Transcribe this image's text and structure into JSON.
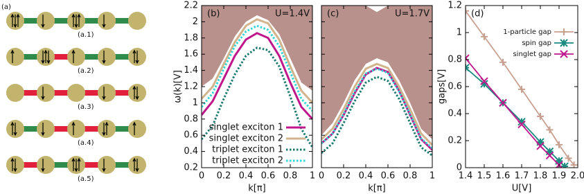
{
  "diagram": {
    "label": "(a)",
    "rows": [
      "(a.1)",
      "(a.2)",
      "(a.3)",
      "(a.4)",
      "(a.5)"
    ]
  },
  "chart_data": [
    {
      "type": "line",
      "panel": "(b)",
      "annotation": "U=1.4V",
      "ylabel": "ω(k)[V]",
      "xlabel": "k[π]",
      "x": [
        0,
        0.1,
        0.2,
        0.3,
        0.4,
        0.5,
        0.6,
        0.7,
        0.8,
        0.9,
        1
      ],
      "band": {
        "color": "#b8918c",
        "upper": [
          2.2,
          2.2,
          2.2,
          2.2,
          2.2,
          2.2,
          2.2,
          2.2,
          2.2,
          2.2,
          2.2
        ],
        "lower": [
          1.2,
          1.3,
          1.55,
          1.82,
          2.0,
          2.08,
          2.02,
          1.85,
          1.55,
          1.25,
          1.15
        ]
      },
      "series": [
        {
          "name": "singlet exciton 1",
          "color": "#c0168c",
          "dash": false,
          "values": [
            0.85,
            1.02,
            1.3,
            1.58,
            1.78,
            1.86,
            1.8,
            1.58,
            1.25,
            0.95,
            0.8
          ]
        },
        {
          "name": "singlet exciton 2",
          "color": "#d2b48c",
          "dash": false,
          "values": [
            1.05,
            1.2,
            1.48,
            1.75,
            1.95,
            2.03,
            1.98,
            1.78,
            1.45,
            1.15,
            1.0
          ]
        },
        {
          "name": "triplet exciton 1",
          "color": "#1a7a6e",
          "dash": true,
          "values": [
            0.55,
            0.72,
            1.05,
            1.35,
            1.58,
            1.68,
            1.65,
            1.45,
            1.08,
            0.68,
            0.45
          ]
        },
        {
          "name": "triplet exciton 2",
          "color": "#2fd4d4",
          "dash": true,
          "values": [
            0.95,
            1.12,
            1.42,
            1.7,
            1.88,
            1.95,
            1.9,
            1.7,
            1.38,
            1.05,
            0.9
          ]
        }
      ],
      "legend": "lower left",
      "show_ytick_labels": true,
      "xlim": [
        0,
        1
      ],
      "xticks": [
        0,
        0.2,
        0.4,
        0.6,
        0.8,
        1
      ],
      "ylim": [
        0.2,
        2.2
      ],
      "yticks": [
        0.2,
        0.4,
        0.6,
        0.8,
        1,
        1.2,
        1.4,
        1.6,
        1.8,
        2,
        2.2
      ]
    },
    {
      "type": "line",
      "panel": "(c)",
      "annotation": "U=1.7V",
      "xlabel": "k[π]",
      "x": [
        0,
        0.1,
        0.2,
        0.3,
        0.4,
        0.5,
        0.6,
        0.7,
        0.8,
        0.9,
        1
      ],
      "band": {
        "color": "#b8918c",
        "upper": [
          2.2,
          2.2,
          2.2,
          2.2,
          2.2,
          2.12,
          2.2,
          2.2,
          2.2,
          2.2,
          2.2
        ],
        "lower": [
          0.6,
          0.75,
          1.0,
          1.28,
          1.48,
          1.55,
          1.5,
          1.28,
          1.0,
          0.68,
          0.55
        ]
      },
      "series": [
        {
          "color": "#c0168c",
          "dash": false,
          "values": [
            0.5,
            0.62,
            0.85,
            1.12,
            1.35,
            1.43,
            1.38,
            1.15,
            0.85,
            0.55,
            0.42
          ]
        },
        {
          "color": "#d2b48c",
          "dash": false,
          "values": [
            0.55,
            0.68,
            0.92,
            1.2,
            1.42,
            1.48,
            1.43,
            1.2,
            0.92,
            0.62,
            0.48
          ]
        },
        {
          "color": "#1a7a6e",
          "dash": true,
          "values": [
            0.38,
            0.5,
            0.75,
            1.02,
            1.25,
            1.32,
            1.27,
            1.05,
            0.75,
            0.45,
            0.35
          ]
        },
        {
          "color": "#2fd4d4",
          "dash": true,
          "values": [
            0.5,
            0.62,
            0.86,
            1.14,
            1.36,
            1.42,
            1.37,
            1.14,
            0.86,
            0.56,
            0.44
          ]
        }
      ],
      "show_ytick_labels": false,
      "xlim": [
        0,
        1
      ],
      "xticks": [
        0,
        0.2,
        0.4,
        0.6,
        0.8,
        1
      ],
      "ylim": [
        0.2,
        2.2
      ],
      "yticks": [
        0.2,
        0.4,
        0.6,
        0.8,
        1,
        1.2,
        1.4,
        1.6,
        1.8,
        2,
        2.2
      ]
    },
    {
      "type": "scatter",
      "panel": "(d)",
      "ylabel": "gaps[V]",
      "xlabel": "U[V]",
      "series": [
        {
          "name": "1-particle gap",
          "color": "#c8a090",
          "marker": "plus",
          "x": [
            1.4,
            1.5,
            1.6,
            1.7,
            1.8,
            1.85,
            1.9,
            1.95,
            1.98
          ],
          "values": [
            1.16,
            0.97,
            0.78,
            0.58,
            0.38,
            0.28,
            0.17,
            0.07,
            0.02
          ]
        },
        {
          "name": "spin gap",
          "color": "#1a8a80",
          "marker": "star",
          "x": [
            1.4,
            1.5,
            1.6,
            1.7,
            1.8,
            1.85,
            1.9,
            1.93
          ],
          "values": [
            0.74,
            0.62,
            0.48,
            0.34,
            0.19,
            0.12,
            0.05,
            0.01
          ]
        },
        {
          "name": "singlet gap",
          "color": "#c0168c",
          "marker": "cross",
          "x": [
            1.4,
            1.5,
            1.6,
            1.7,
            1.8,
            1.85,
            1.9
          ],
          "values": [
            0.81,
            0.64,
            0.48,
            0.32,
            0.16,
            0.09,
            0.02
          ]
        }
      ],
      "legend": "upper right",
      "show_ytick_labels": true,
      "xlim": [
        1.4,
        2
      ],
      "xticks": [
        1.4,
        1.5,
        1.6,
        1.7,
        1.8,
        1.9,
        {
          "value": 2,
          "label": "2.0"
        }
      ],
      "ylim": [
        0,
        1.2
      ],
      "yticks": [
        0,
        0.2,
        0.4,
        0.6,
        0.8,
        1,
        1.2
      ]
    }
  ]
}
